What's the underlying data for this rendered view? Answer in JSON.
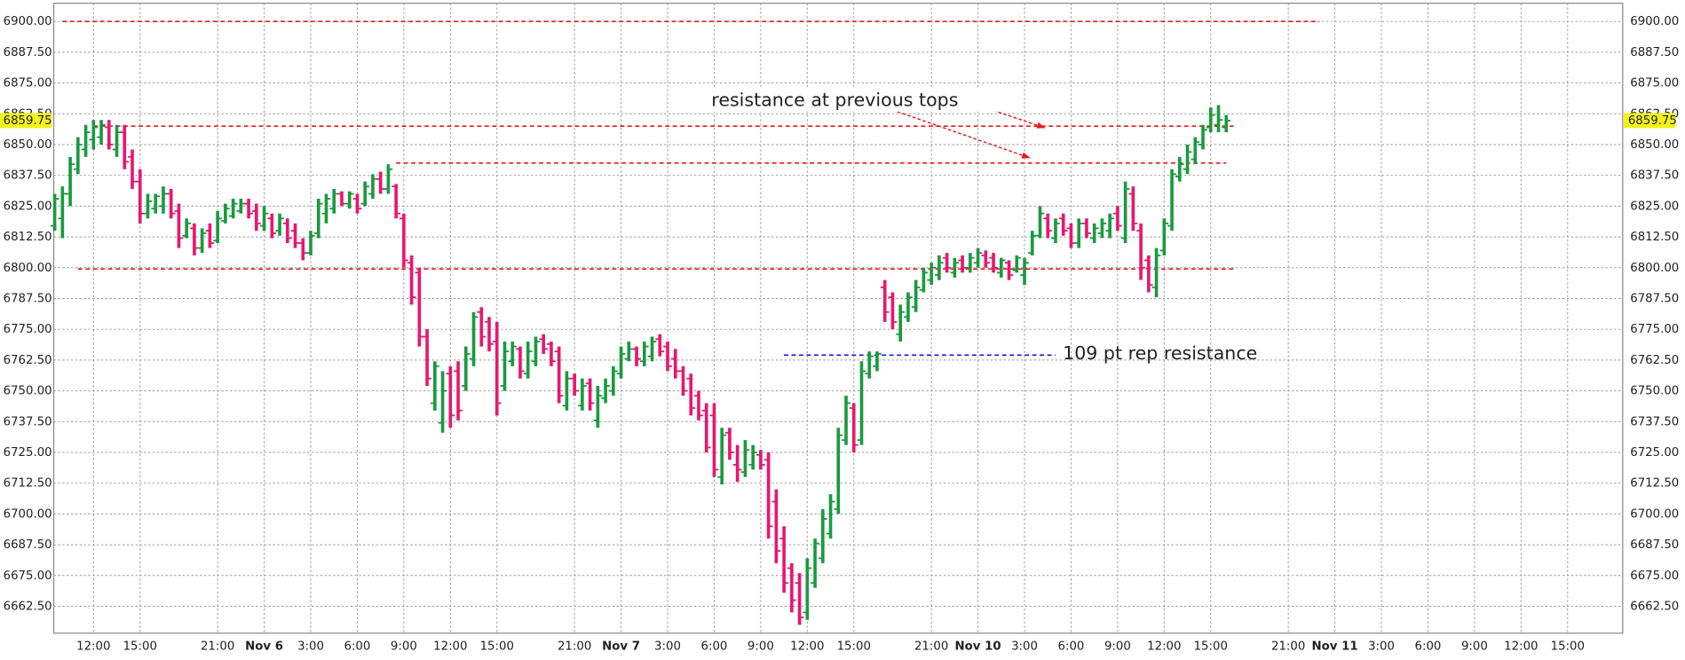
{
  "chart_data": {
    "type": "ohlc",
    "ylim": [
      6651.6,
      6907.4
    ],
    "yticks": [
      {
        "value": 6662.5,
        "label": "6662.50"
      },
      {
        "value": 6675,
        "label": "6675.00"
      },
      {
        "value": 6687.5,
        "label": "6687.50"
      },
      {
        "value": 6700,
        "label": "6700.00"
      },
      {
        "value": 6712.5,
        "label": "6712.50"
      },
      {
        "value": 6725,
        "label": "6725.00"
      },
      {
        "value": 6737.5,
        "label": "6737.50"
      },
      {
        "value": 6750,
        "label": "6750.00"
      },
      {
        "value": 6762.5,
        "label": "6762.50"
      },
      {
        "value": 6775,
        "label": "6775.00"
      },
      {
        "value": 6787.5,
        "label": "6787.50"
      },
      {
        "value": 6800,
        "label": "6800.00"
      },
      {
        "value": 6812.5,
        "label": "6812.50"
      },
      {
        "value": 6825,
        "label": "6825.00"
      },
      {
        "value": 6837.5,
        "label": "6837.50"
      },
      {
        "value": 6850,
        "label": "6850.00"
      },
      {
        "value": 6862.5,
        "label": "6862.50"
      },
      {
        "value": 6875,
        "label": "6875.00"
      },
      {
        "value": 6887.5,
        "label": "6887.50"
      },
      {
        "value": 6900,
        "label": "6900.00"
      }
    ],
    "grid": true,
    "up_color": "#1a9a3e",
    "down_color": "#e8176e",
    "last_price": 6859.75,
    "last_price_color": "#f3f31a",
    "categories": [
      null,
      null,
      null,
      null,
      null,
      "12:00",
      null,
      null,
      null,
      null,
      null,
      "15:00",
      null,
      null,
      null,
      null,
      null,
      null,
      null,
      null,
      null,
      "21:00",
      null,
      null,
      null,
      null,
      null,
      "Nov 6",
      null,
      null,
      null,
      null,
      null,
      "3:00",
      null,
      null,
      null,
      null,
      null,
      "6:00",
      null,
      null,
      null,
      null,
      null,
      "9:00",
      null,
      null,
      null,
      null,
      null,
      "12:00",
      null,
      null,
      null,
      null,
      null,
      "15:00",
      null,
      null,
      null,
      null,
      null,
      null,
      null,
      null,
      null,
      "21:00",
      null,
      null,
      null,
      null,
      null,
      "Nov 7",
      null,
      null,
      null,
      null,
      null,
      "3:00",
      null,
      null,
      null,
      null,
      null,
      "6:00",
      null,
      null,
      null,
      null,
      null,
      "9:00",
      null,
      null,
      null,
      null,
      null,
      "12:00",
      null,
      null,
      null,
      null,
      null,
      "15:00",
      null,
      null,
      null,
      null,
      null,
      null,
      null,
      null,
      null,
      "21:00",
      null,
      null,
      null,
      null,
      null,
      "Nov 10",
      null,
      null,
      null,
      null,
      null,
      "3:00",
      null,
      null,
      null,
      null,
      null,
      "6:00",
      null,
      null,
      null,
      null,
      null,
      "9:00",
      null,
      null,
      null,
      null,
      null,
      "12:00",
      null,
      null,
      null,
      null,
      null,
      "15:00",
      null,
      null,
      null,
      null,
      null,
      null,
      null,
      null,
      null,
      "21:00",
      null,
      null,
      null,
      null,
      null,
      "Nov 11",
      null,
      null,
      null,
      null,
      null,
      "3:00",
      null,
      null,
      null,
      null,
      null,
      "6:00",
      null,
      null,
      null,
      null,
      null,
      "9:00",
      null,
      null,
      null,
      null,
      null,
      "12:00",
      null,
      null,
      null,
      null,
      null,
      "15:00",
      null,
      null,
      null,
      null,
      null,
      null,
      null
    ],
    "open": [
      6817,
      6820,
      6830,
      6840,
      6848,
      6852,
      6853,
      6857,
      6848,
      6855,
      6845,
      6835,
      6822,
      6824,
      6825,
      6830,
      6823,
      6813,
      6816,
      6808,
      6815,
      6811,
      6819,
      6821,
      6823,
      6826,
      6823,
      6817,
      6820,
      6815,
      6818,
      6815,
      6810,
      6806,
      6814,
      6822,
      6824,
      6830,
      6826,
      6828,
      6826,
      6830,
      6836,
      6832,
      6833,
      6820,
      6802,
      6798,
      6772,
      6745,
      6737,
      6757,
      6758,
      6752,
      6763,
      6782,
      6778,
      6770,
      6752,
      6762,
      6767,
      6757,
      6762,
      6771,
      6769,
      6766,
      6744,
      6755,
      6744,
      6753,
      6738,
      6747,
      6750,
      6757,
      6763,
      6767,
      6762,
      6764,
      6771,
      6768,
      6763,
      6758,
      6755,
      6748,
      6742,
      6740,
      6715,
      6733,
      6720,
      6717,
      6720,
      6724,
      6722,
      6705,
      6690,
      6678,
      6672,
      6660,
      6672,
      6682,
      6692,
      6702,
      6730,
      6743,
      6730,
      6757,
      6760,
      6792,
      6788,
      6773,
      6780,
      6784,
      6791,
      6795,
      6797,
      6804,
      6798,
      6803,
      6800,
      6802,
      6805,
      6804,
      6798,
      6802,
      6799,
      6797,
      6806,
      6813,
      6820,
      6812,
      6820,
      6816,
      6810,
      6818,
      6812,
      6814,
      6815,
      6822,
      6812,
      6830,
      6815,
      6803,
      6792,
      6807,
      6817,
      6837,
      6840,
      6844,
      6850,
      6857,
      6858,
      6857,
      null,
      null,
      null,
      null,
      null,
      null,
      null,
      null,
      null,
      null,
      null,
      null,
      null,
      null,
      null,
      null,
      null,
      null,
      null,
      null,
      null,
      null,
      null,
      null,
      null,
      null,
      null,
      null,
      null,
      null,
      null,
      null,
      null,
      null,
      null,
      null,
      null,
      null,
      null,
      null,
      null,
      null,
      null,
      null,
      null,
      null,
      null,
      null,
      null,
      null,
      null
    ],
    "high": [
      6830,
      6833,
      6845,
      6853,
      6858,
      6860,
      6860,
      6860,
      6858,
      6858,
      6848,
      6840,
      6830,
      6830,
      6833,
      6832,
      6826,
      6820,
      6818,
      6816,
      6818,
      6823,
      6826,
      6828,
      6828,
      6828,
      6826,
      6825,
      6822,
      6822,
      6820,
      6818,
      6812,
      6815,
      6828,
      6830,
      6832,
      6831,
      6831,
      6830,
      6835,
      6838,
      6839,
      6842,
      6834,
      6822,
      6805,
      6800,
      6775,
      6762,
      6758,
      6760,
      6762,
      6768,
      6782,
      6784,
      6780,
      6778,
      6770,
      6770,
      6768,
      6770,
      6772,
      6773,
      6770,
      6768,
      6758,
      6757,
      6755,
      6755,
      6752,
      6755,
      6760,
      6768,
      6770,
      6768,
      6770,
      6772,
      6773,
      6770,
      6767,
      6760,
      6757,
      6750,
      6745,
      6745,
      6735,
      6735,
      6728,
      6730,
      6728,
      6726,
      6725,
      6710,
      6695,
      6680,
      6676,
      6682,
      6690,
      6702,
      6708,
      6735,
      6748,
      6745,
      6762,
      6766,
      6766,
      6795,
      6790,
      6785,
      6790,
      6795,
      6800,
      6802,
      6805,
      6806,
      6804,
      6805,
      6806,
      6808,
      6807,
      6806,
      6804,
      6803,
      6805,
      6804,
      6815,
      6825,
      6822,
      6820,
      6822,
      6818,
      6820,
      6820,
      6818,
      6820,
      6822,
      6825,
      6835,
      6833,
      6818,
      6805,
      6808,
      6820,
      6840,
      6845,
      6850,
      6853,
      6858,
      6865,
      6866,
      6862,
      null,
      null,
      null,
      null,
      null,
      null,
      null,
      null,
      null,
      null,
      null,
      null,
      null,
      null,
      null,
      null,
      null,
      null,
      null,
      null,
      null,
      null,
      null,
      null,
      null,
      null,
      null,
      null,
      null,
      null,
      null,
      null,
      null,
      null,
      null,
      null,
      null,
      null,
      null,
      null,
      null,
      null,
      null,
      null,
      null,
      null,
      null,
      null,
      null,
      null,
      null
    ],
    "low": [
      6815,
      6812,
      6825,
      6838,
      6845,
      6848,
      6850,
      6848,
      6845,
      6840,
      6832,
      6818,
      6820,
      6822,
      6822,
      6820,
      6808,
      6812,
      6805,
      6806,
      6808,
      6810,
      6818,
      6820,
      6822,
      6820,
      6815,
      6815,
      6812,
      6813,
      6810,
      6808,
      6803,
      6805,
      6812,
      6818,
      6822,
      6825,
      6824,
      6822,
      6825,
      6828,
      6830,
      6830,
      6820,
      6800,
      6785,
      6768,
      6752,
      6742,
      6733,
      6735,
      6738,
      6750,
      6760,
      6768,
      6766,
      6740,
      6750,
      6760,
      6755,
      6755,
      6760,
      6765,
      6760,
      6745,
      6742,
      6748,
      6742,
      6742,
      6735,
      6745,
      6748,
      6755,
      6762,
      6760,
      6760,
      6762,
      6764,
      6758,
      6755,
      6748,
      6740,
      6738,
      6725,
      6715,
      6712,
      6722,
      6713,
      6715,
      6718,
      6718,
      6690,
      6680,
      6668,
      6660,
      6655,
      6657,
      6670,
      6680,
      6690,
      6700,
      6728,
      6725,
      6728,
      6755,
      6758,
      6778,
      6775,
      6770,
      6778,
      6782,
      6790,
      6793,
      6795,
      6798,
      6796,
      6798,
      6798,
      6800,
      6800,
      6798,
      6796,
      6795,
      6798,
      6793,
      6805,
      6812,
      6812,
      6810,
      6813,
      6808,
      6808,
      6812,
      6810,
      6812,
      6812,
      6815,
      6810,
      6815,
      6795,
      6790,
      6788,
      6805,
      6815,
      6835,
      6838,
      6842,
      6848,
      6855,
      6855,
      6855,
      null,
      null,
      null,
      null,
      null,
      null,
      null,
      null,
      null,
      null,
      null,
      null,
      null,
      null,
      null,
      null,
      null,
      null,
      null,
      null,
      null,
      null,
      null,
      null,
      null,
      null,
      null,
      null,
      null,
      null,
      null,
      null,
      null,
      null,
      null,
      null,
      null,
      null,
      null,
      null,
      null,
      null,
      null,
      null,
      null,
      null,
      null,
      null,
      null,
      null,
      null
    ],
    "close": [
      6828,
      6830,
      6842,
      6850,
      6855,
      6857,
      6858,
      6850,
      6855,
      6843,
      6835,
      6822,
      6827,
      6829,
      6830,
      6822,
      6812,
      6818,
      6808,
      6814,
      6810,
      6820,
      6824,
      6826,
      6826,
      6822,
      6818,
      6822,
      6814,
      6820,
      6812,
      6810,
      6806,
      6813,
      6826,
      6828,
      6830,
      6826,
      6830,
      6824,
      6833,
      6836,
      6832,
      6840,
      6822,
      6803,
      6788,
      6772,
      6755,
      6760,
      6750,
      6740,
      6742,
      6765,
      6780,
      6772,
      6769,
      6745,
      6766,
      6768,
      6758,
      6766,
      6770,
      6767,
      6762,
      6748,
      6755,
      6750,
      6752,
      6745,
      6748,
      6752,
      6758,
      6765,
      6767,
      6763,
      6768,
      6770,
      6766,
      6760,
      6758,
      6750,
      6743,
      6740,
      6727,
      6718,
      6732,
      6725,
      6718,
      6726,
      6725,
      6720,
      6695,
      6685,
      6672,
      6665,
      6658,
      6678,
      6688,
      6698,
      6705,
      6732,
      6745,
      6728,
      6758,
      6764,
      6765,
      6782,
      6778,
      6782,
      6788,
      6792,
      6798,
      6800,
      6802,
      6800,
      6802,
      6800,
      6804,
      6806,
      6802,
      6800,
      6803,
      6797,
      6804,
      6802,
      6813,
      6822,
      6815,
      6818,
      6815,
      6810,
      6818,
      6814,
      6816,
      6818,
      6820,
      6817,
      6832,
      6818,
      6800,
      6793,
      6805,
      6818,
      6838,
      6842,
      6847,
      6851,
      6856,
      6862,
      6860,
      6859.75,
      null,
      null,
      null,
      null,
      null,
      null,
      null,
      null,
      null,
      null,
      null,
      null,
      null,
      null,
      null,
      null,
      null,
      null,
      null,
      null,
      null,
      null,
      null,
      null,
      null,
      null,
      null,
      null,
      null,
      null,
      null,
      null,
      null,
      null,
      null,
      null,
      null,
      null,
      null,
      null,
      null,
      null,
      null,
      null,
      null,
      null,
      null,
      null,
      null,
      null,
      null
    ],
    "levels": [
      {
        "value": 6900,
        "color": "#e8191e",
        "start": 1,
        "end": 163
      },
      {
        "value": 6857.5,
        "color": "#e8191e",
        "start": 5,
        "end": 152
      },
      {
        "value": 6842.5,
        "color": "#e8191e",
        "start": 44,
        "end": 151
      },
      {
        "value": 6799.5,
        "color": "#e8191e",
        "start": 3,
        "end": 152
      },
      {
        "value": 6764.5,
        "color": "#1515e0",
        "start": 94,
        "end": 129
      }
    ],
    "annotations": [
      {
        "text": "resistance at previous tops",
        "color": "#e8191e"
      },
      {
        "text": "109 pt rep resistance",
        "color": "#1515e0"
      }
    ]
  }
}
